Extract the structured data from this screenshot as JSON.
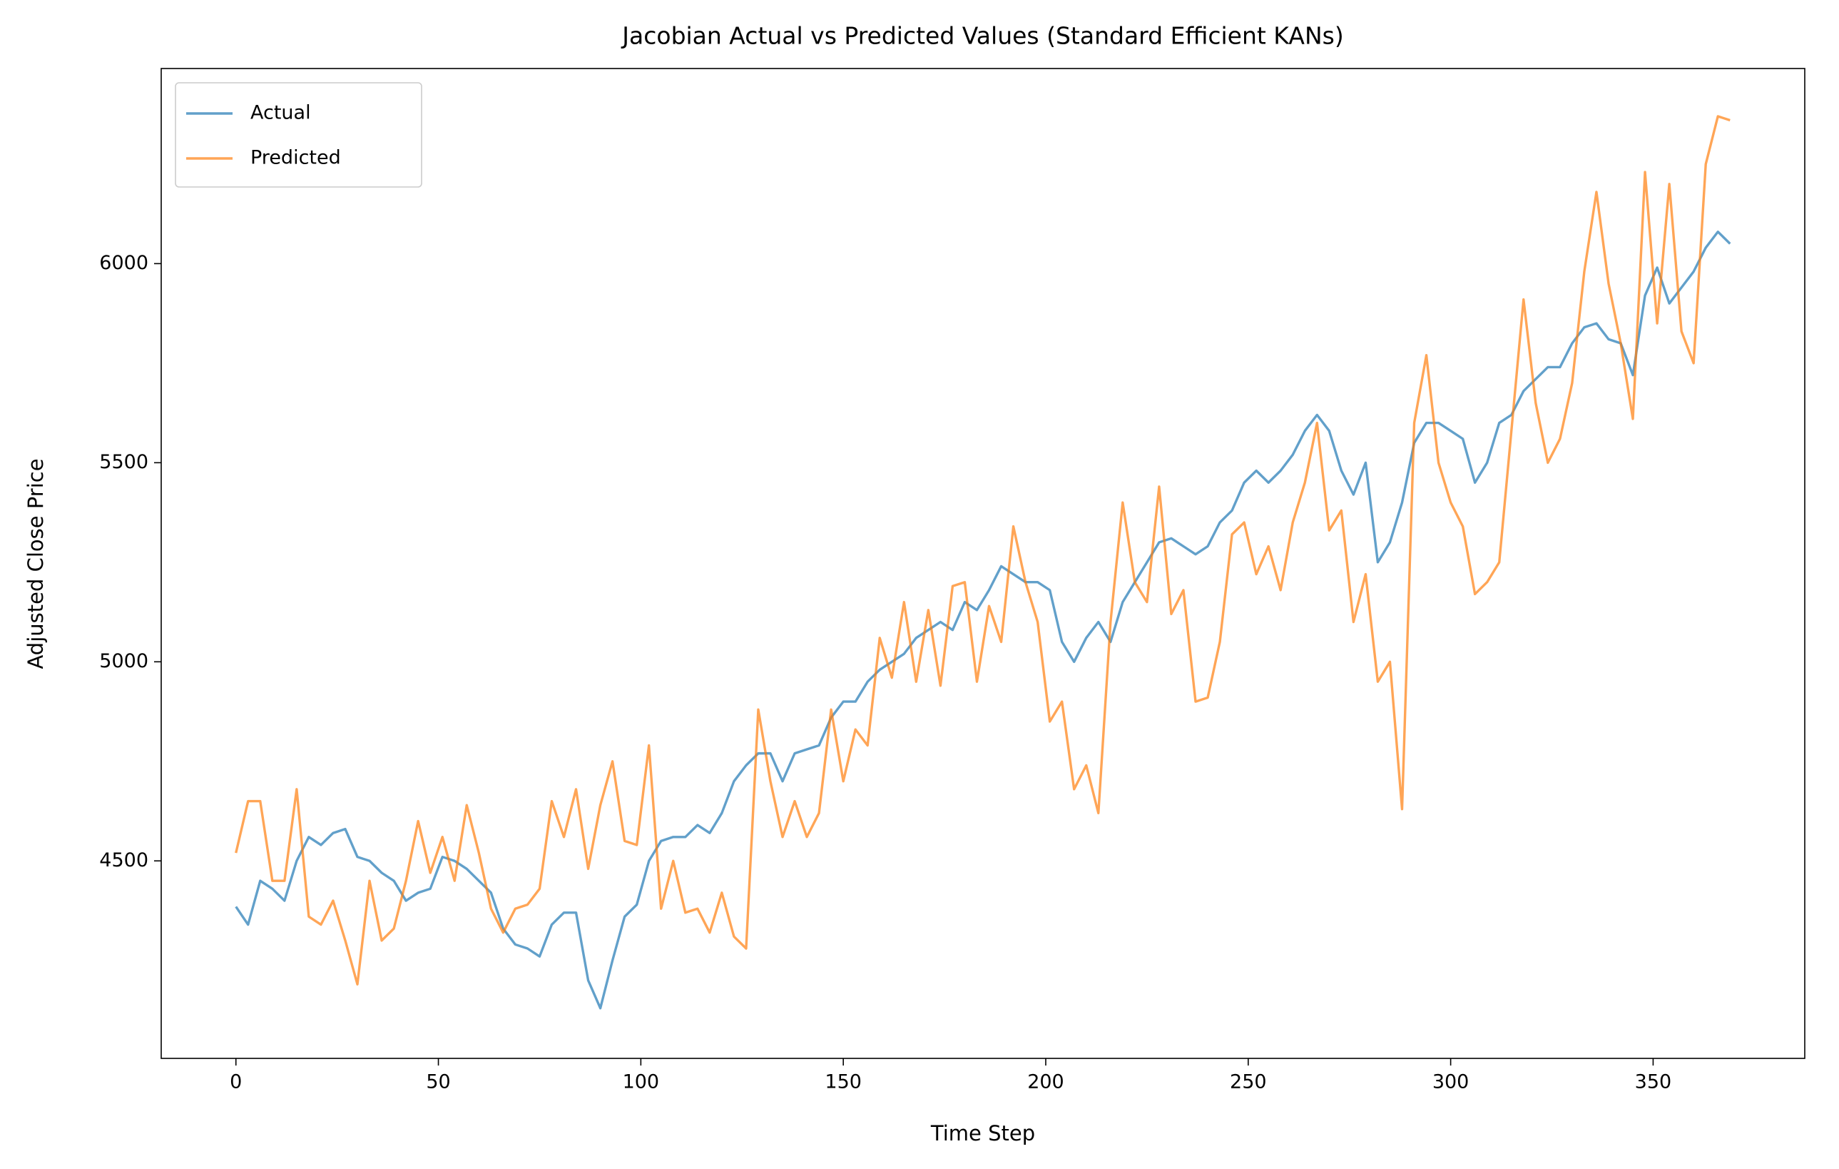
{
  "chart_data": {
    "type": "line",
    "title": "Jacobian Actual vs Predicted Values (Standard Efficient KANs)",
    "xlabel": "Time Step",
    "ylabel": "Adjusted Close Price",
    "x": [
      0,
      3,
      6,
      9,
      12,
      15,
      18,
      21,
      24,
      27,
      30,
      33,
      36,
      39,
      42,
      45,
      48,
      51,
      54,
      57,
      60,
      63,
      66,
      69,
      72,
      75,
      78,
      81,
      84,
      87,
      90,
      93,
      96,
      99,
      102,
      105,
      108,
      111,
      114,
      117,
      120,
      123,
      126,
      129,
      132,
      135,
      138,
      141,
      144,
      147,
      150,
      153,
      156,
      159,
      162,
      165,
      168,
      171,
      174,
      177,
      180,
      183,
      186,
      189,
      192,
      195,
      198,
      201,
      204,
      207,
      210,
      213,
      216,
      219,
      222,
      225,
      228,
      231,
      234,
      237,
      240,
      243,
      246,
      249,
      252,
      255,
      258,
      261,
      264,
      267,
      270,
      273,
      276,
      279,
      282,
      285,
      288,
      291,
      294,
      297,
      300,
      303,
      306,
      309,
      312,
      315,
      318,
      321,
      324,
      327,
      330,
      333,
      336,
      339,
      342,
      345,
      348,
      351,
      354,
      357,
      360,
      363,
      366,
      369
    ],
    "series": [
      {
        "name": "Actual",
        "color": "#1f77b4",
        "values": [
          4385,
          4340,
          4450,
          4430,
          4400,
          4500,
          4560,
          4540,
          4570,
          4580,
          4510,
          4500,
          4470,
          4450,
          4400,
          4420,
          4430,
          4510,
          4500,
          4480,
          4450,
          4420,
          4330,
          4290,
          4280,
          4260,
          4340,
          4370,
          4370,
          4200,
          4130,
          4250,
          4360,
          4390,
          4500,
          4550,
          4560,
          4560,
          4590,
          4570,
          4620,
          4700,
          4740,
          4770,
          4770,
          4700,
          4770,
          4780,
          4790,
          4860,
          4900,
          4900,
          4950,
          4980,
          5000,
          5020,
          5060,
          5080,
          5100,
          5080,
          5150,
          5130,
          5180,
          5240,
          5220,
          5200,
          5200,
          5180,
          5050,
          5000,
          5060,
          5100,
          5050,
          5150,
          5200,
          5250,
          5300,
          5310,
          5290,
          5270,
          5290,
          5350,
          5380,
          5450,
          5480,
          5450,
          5480,
          5520,
          5580,
          5620,
          5580,
          5480,
          5420,
          5500,
          5250,
          5300,
          5400,
          5550,
          5600,
          5600,
          5580,
          5560,
          5450,
          5500,
          5600,
          5620,
          5680,
          5710,
          5740,
          5740,
          5800,
          5840,
          5850,
          5810,
          5800,
          5720,
          5920,
          5990,
          5900,
          5940,
          5980,
          6040,
          6080,
          6050
        ]
      },
      {
        "name": "Predicted",
        "color": "#ff7f0e",
        "values": [
          4520,
          4650,
          4650,
          4450,
          4450,
          4680,
          4360,
          4340,
          4400,
          4300,
          4190,
          4450,
          4300,
          4330,
          4450,
          4600,
          4470,
          4560,
          4450,
          4640,
          4520,
          4380,
          4320,
          4380,
          4390,
          4430,
          4650,
          4560,
          4680,
          4480,
          4640,
          4750,
          4550,
          4540,
          4790,
          4380,
          4500,
          4370,
          4380,
          4320,
          4420,
          4310,
          4280,
          4880,
          4700,
          4560,
          4650,
          4560,
          4620,
          4880,
          4700,
          4830,
          4790,
          5060,
          4960,
          5150,
          4950,
          5130,
          4940,
          5190,
          5200,
          4950,
          5140,
          5050,
          5340,
          5200,
          5100,
          4850,
          4900,
          4680,
          4740,
          4620,
          5100,
          5400,
          5200,
          5150,
          5440,
          5120,
          5180,
          4900,
          4910,
          5050,
          5320,
          5350,
          5220,
          5290,
          5180,
          5350,
          5450,
          5600,
          5330,
          5380,
          5100,
          5220,
          4950,
          5000,
          4630,
          5600,
          5770,
          5500,
          5400,
          5340,
          5170,
          5200,
          5250,
          5580,
          5910,
          5650,
          5500,
          5560,
          5700,
          5980,
          6180,
          5950,
          5800,
          5610,
          6230,
          5850,
          6200,
          5830,
          5750,
          6250,
          6370,
          6360
        ]
      }
    ],
    "alpha": 0.7,
    "xlim": [
      -18.45,
      387.45
    ],
    "ylim": [
      4004,
      6490
    ],
    "xticks": [
      0,
      50,
      100,
      150,
      200,
      250,
      300,
      350
    ],
    "yticks": [
      4500,
      5000,
      5500,
      6000
    ],
    "legend": "upper left"
  }
}
